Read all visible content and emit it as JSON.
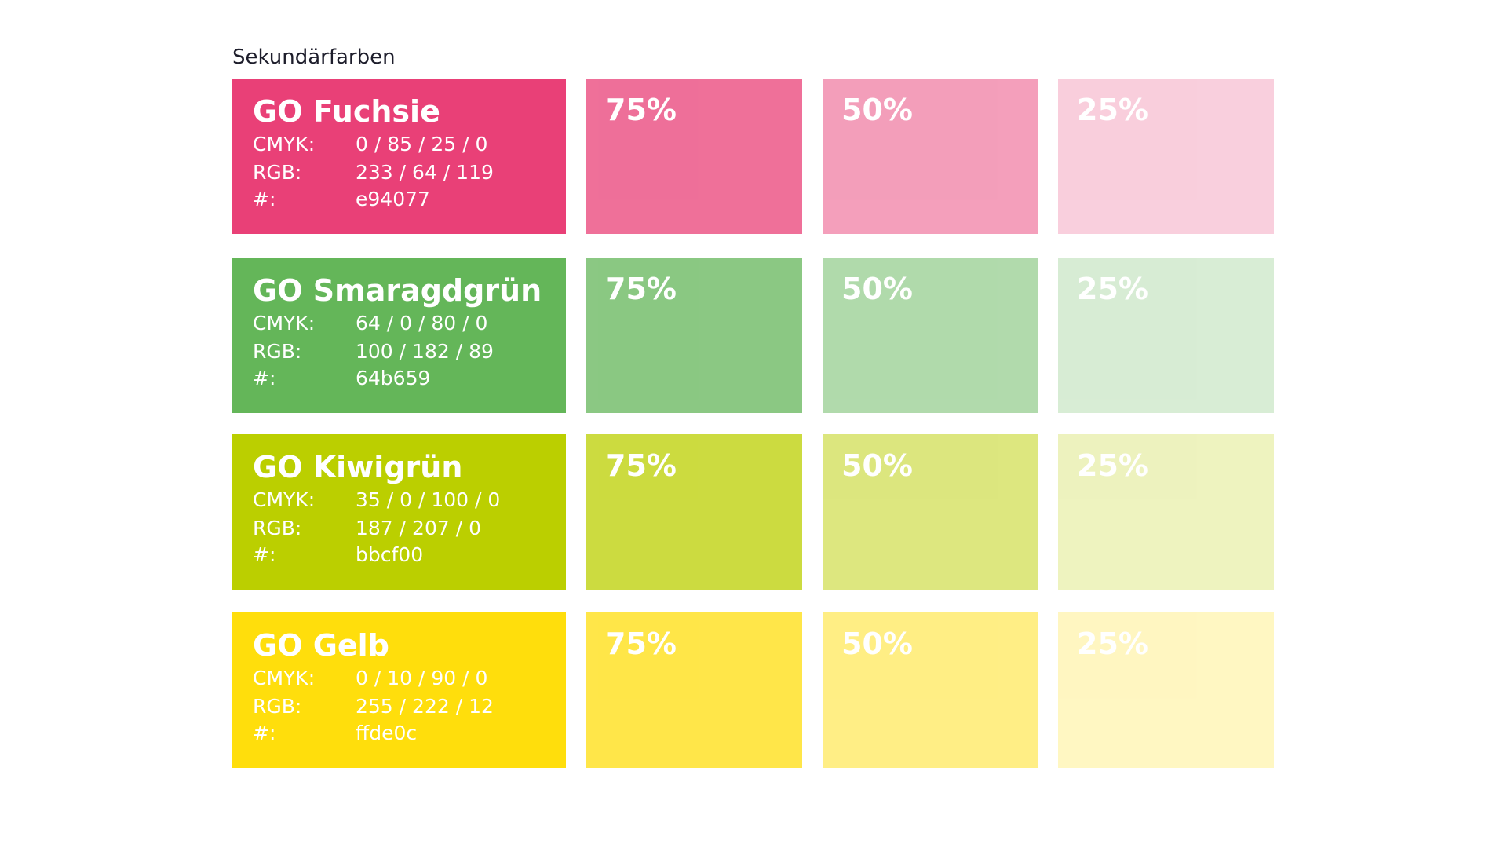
{
  "title": "Sekundärfarben",
  "rows": [
    {
      "name": "GO Fuchsie",
      "color": "#e94077",
      "cmyk_label": "CMYK:",
      "cmyk": "0 / 85 / 25 / 0",
      "rgb_label": "RGB:",
      "rgb": "233 / 64 / 119",
      "hex_label": "#:",
      "hex": "e94077",
      "tints": [
        "75%",
        "50%",
        "25%"
      ]
    },
    {
      "name": "GO Smaragdgrün",
      "color": "#64b659",
      "cmyk_label": "CMYK:",
      "cmyk": "64 / 0 / 80 / 0",
      "rgb_label": "RGB:",
      "rgb": "100 / 182 / 89",
      "hex_label": "#:",
      "hex": "64b659",
      "tints": [
        "75%",
        "50%",
        "25%"
      ]
    },
    {
      "name": "GO Kiwigrün",
      "color": "#bbcf00",
      "cmyk_label": "CMYK:",
      "cmyk": "35 / 0 / 100 / 0",
      "rgb_label": "RGB:",
      "rgb": "187 / 207 / 0",
      "hex_label": "#:",
      "hex": "bbcf00",
      "tints": [
        "75%",
        "50%",
        "25%"
      ]
    },
    {
      "name": "GO Gelb",
      "color": "#ffde0c",
      "cmyk_label": "CMYK:",
      "cmyk": "0 / 10 / 90 / 0",
      "rgb_label": "RGB:",
      "rgb": "255 / 222 / 12",
      "hex_label": "#:",
      "hex": "ffde0c",
      "tints": [
        "75%",
        "50%",
        "25%"
      ]
    }
  ]
}
